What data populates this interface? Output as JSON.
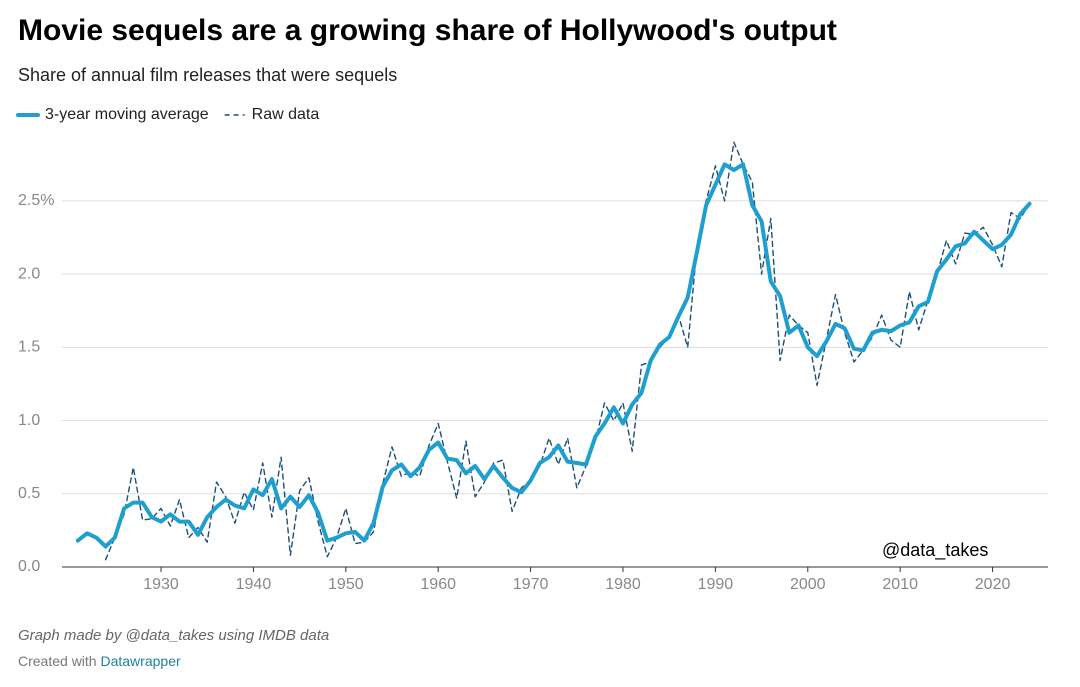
{
  "chart_data": {
    "type": "line",
    "title": "Movie sequels are a growing share of Hollywood's output",
    "subtitle": "Share of annual film releases that were sequels",
    "annotation": "@data_takes",
    "note": "Graph made by @data_takes using IMDB data",
    "credit": "Created with",
    "credit_link": "Datawrapper",
    "x": [
      1921,
      1922,
      1923,
      1924,
      1925,
      1926,
      1927,
      1928,
      1929,
      1930,
      1931,
      1932,
      1933,
      1934,
      1935,
      1936,
      1937,
      1938,
      1939,
      1940,
      1941,
      1942,
      1943,
      1944,
      1945,
      1946,
      1947,
      1948,
      1949,
      1950,
      1951,
      1952,
      1953,
      1954,
      1955,
      1956,
      1957,
      1958,
      1959,
      1960,
      1961,
      1962,
      1963,
      1964,
      1965,
      1966,
      1967,
      1968,
      1969,
      1970,
      1971,
      1972,
      1973,
      1974,
      1975,
      1976,
      1977,
      1978,
      1979,
      1980,
      1981,
      1982,
      1983,
      1984,
      1985,
      1986,
      1987,
      1988,
      1989,
      1990,
      1991,
      1992,
      1993,
      1994,
      1995,
      1996,
      1997,
      1998,
      1999,
      2000,
      2001,
      2002,
      2003,
      2004,
      2005,
      2006,
      2007,
      2008,
      2009,
      2010,
      2011,
      2012,
      2013,
      2014,
      2015,
      2016,
      2017,
      2018,
      2019,
      2020,
      2021,
      2022,
      2023,
      2024
    ],
    "series": [
      {
        "name": "3-year moving average",
        "color": "#1f9fd0",
        "style": "solid",
        "values": [
          0.18,
          0.23,
          0.2,
          0.14,
          0.2,
          0.4,
          0.44,
          0.44,
          0.34,
          0.31,
          0.36,
          0.31,
          0.31,
          0.22,
          0.34,
          0.41,
          0.46,
          0.42,
          0.4,
          0.53,
          0.49,
          0.6,
          0.4,
          0.48,
          0.41,
          0.49,
          0.37,
          0.18,
          0.2,
          0.23,
          0.24,
          0.18,
          0.3,
          0.55,
          0.66,
          0.7,
          0.62,
          0.68,
          0.8,
          0.85,
          0.74,
          0.73,
          0.64,
          0.69,
          0.6,
          0.69,
          0.61,
          0.54,
          0.51,
          0.59,
          0.71,
          0.75,
          0.83,
          0.72,
          0.71,
          0.7,
          0.89,
          0.98,
          1.09,
          0.98,
          1.11,
          1.19,
          1.41,
          1.52,
          1.57,
          1.71,
          1.84,
          2.15,
          2.47,
          2.61,
          2.75,
          2.71,
          2.75,
          2.47,
          2.36,
          1.95,
          1.85,
          1.6,
          1.65,
          1.5,
          1.44,
          1.54,
          1.66,
          1.63,
          1.49,
          1.48,
          1.6,
          1.62,
          1.61,
          1.65,
          1.67,
          1.78,
          1.81,
          2.02,
          2.1,
          2.19,
          2.21,
          2.29,
          2.23,
          2.17,
          2.2,
          2.27,
          2.41,
          2.48
        ]
      },
      {
        "name": "Raw data",
        "color": "#1d4e79",
        "style": "dashed",
        "values": [
          null,
          null,
          null,
          0.05,
          0.2,
          0.36,
          0.68,
          0.32,
          0.33,
          0.4,
          0.28,
          0.46,
          0.2,
          0.27,
          0.17,
          0.58,
          0.48,
          0.3,
          0.51,
          0.39,
          0.71,
          0.34,
          0.75,
          0.08,
          0.52,
          0.61,
          0.31,
          0.07,
          0.2,
          0.4,
          0.16,
          0.17,
          0.24,
          0.57,
          0.82,
          0.62,
          0.65,
          0.62,
          0.83,
          0.98,
          0.72,
          0.47,
          0.86,
          0.48,
          0.58,
          0.71,
          0.73,
          0.38,
          0.54,
          0.59,
          0.69,
          0.88,
          0.7,
          0.88,
          0.54,
          0.69,
          0.86,
          1.12,
          1.0,
          1.12,
          0.79,
          1.38,
          1.4,
          1.5,
          1.57,
          1.72,
          1.5,
          2.18,
          2.5,
          2.74,
          2.5,
          2.9,
          2.75,
          2.63,
          2.0,
          2.38,
          1.41,
          1.72,
          1.65,
          1.6,
          1.24,
          1.55,
          1.86,
          1.6,
          1.4,
          1.48,
          1.57,
          1.72,
          1.55,
          1.5,
          1.88,
          1.62,
          1.82,
          2.0,
          2.23,
          2.07,
          2.28,
          2.27,
          2.32,
          2.2,
          2.05,
          2.42,
          2.38,
          2.48
        ]
      }
    ],
    "xlim": [
      1919,
      2026
    ],
    "xticks": [
      1930,
      1940,
      1950,
      1960,
      1970,
      1980,
      1990,
      2000,
      2010,
      2020
    ],
    "ylim": [
      0,
      2.95
    ],
    "yticks": [
      {
        "value": 0,
        "label": "0.0"
      },
      0.5,
      {
        "value": 1,
        "label": "1.0"
      },
      1.5,
      {
        "value": 2,
        "label": "2.0"
      },
      {
        "value": 2.5,
        "label": "2.5%"
      }
    ],
    "grid": true
  }
}
